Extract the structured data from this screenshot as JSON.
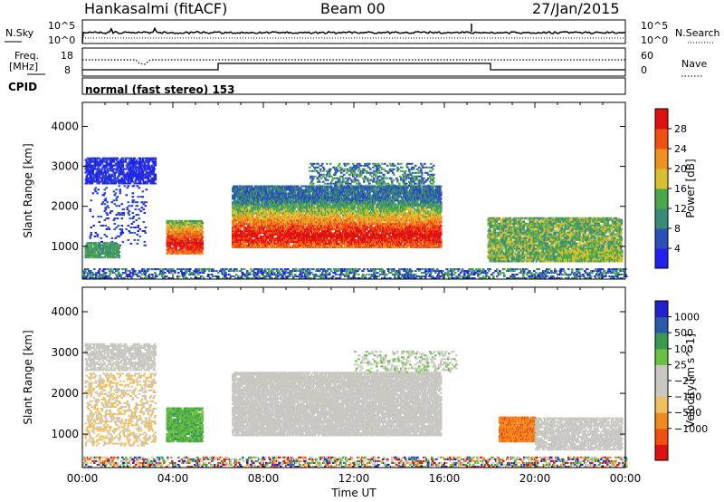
{
  "header": {
    "station": "Hankasalmi (fitACF)",
    "beam": "Beam 00",
    "date": "27/Jan/2015"
  },
  "noise_panel": {
    "left_label": "N.Sky",
    "right_label": "N.Search",
    "left_ticks": [
      "10^5",
      "10^0"
    ],
    "right_ticks": [
      "10^5",
      "10^0"
    ]
  },
  "freq_panel": {
    "left_label_1": "Freq.",
    "left_label_2": "[MHz]",
    "left_ticks": [
      "18",
      "8"
    ],
    "right_label": "Nave",
    "right_ticks": [
      "60",
      "0"
    ]
  },
  "cpid": {
    "label": "CPID",
    "text": "normal (fast stereo) 153"
  },
  "colors": {
    "power_scale": [
      "#2020f0",
      "#2a50b8",
      "#3a8a78",
      "#4aa84a",
      "#d8c030",
      "#f09020",
      "#f05010",
      "#e01010"
    ],
    "velocity_scale": [
      "#e01010",
      "#f05010",
      "#f08a20",
      "#f0c060",
      "#c8c8c0",
      "#c8c8c0",
      "#6ac040",
      "#3a9a50",
      "#2a5aa8",
      "#2020d0"
    ],
    "ground_scatter": "#c8c8c0"
  },
  "chart_data": [
    {
      "type": "heatmap",
      "name": "power",
      "xlabel": "",
      "ylabel": "Slant Range [km]",
      "xlim": [
        0,
        24
      ],
      "ylim": [
        180,
        4600
      ],
      "yticks": [
        "1000",
        "2000",
        "3000",
        "4000"
      ],
      "colorbar_label": "Power [dB]",
      "colorbar_ticks": [
        "4",
        "8",
        "12",
        "16",
        "20",
        "24",
        "28"
      ],
      "colorbar_range": [
        0,
        30
      ],
      "features": [
        {
          "t": [
            3.7,
            5.3
          ],
          "r": [
            800,
            1600
          ],
          "peak_db": 28
        },
        {
          "t": [
            6.6,
            15.8
          ],
          "r": [
            1000,
            2500
          ],
          "peak_db": 28
        },
        {
          "t": [
            0.1,
            3.2
          ],
          "r": [
            2500,
            3200
          ],
          "peak_db": 8
        },
        {
          "t": [
            0.1,
            1.5
          ],
          "r": [
            700,
            1100
          ],
          "peak_db": 12
        },
        {
          "t": [
            17.9,
            23.8
          ],
          "r": [
            600,
            1700
          ],
          "peak_db": 20
        }
      ]
    },
    {
      "type": "heatmap",
      "name": "velocity",
      "xlabel": "Time UT",
      "ylabel": "Slant Range [km]",
      "xlim": [
        0,
        24
      ],
      "ylim": [
        180,
        4600
      ],
      "xticks": [
        "00:00",
        "04:00",
        "08:00",
        "12:00",
        "16:00",
        "20:00",
        "00:00"
      ],
      "yticks": [
        "1000",
        "2000",
        "3000",
        "4000"
      ],
      "colorbar_label": "Velocity [m s^-1]",
      "colorbar_ticks": [
        "1000",
        "500",
        "100",
        "25",
        "−25",
        "−100",
        "−500",
        "−1000"
      ],
      "features": [
        {
          "t": [
            3.7,
            5.3
          ],
          "r": [
            800,
            1600
          ],
          "velocity": 150
        },
        {
          "t": [
            6.6,
            15.8
          ],
          "r": [
            1000,
            2500
          ],
          "velocity": 0
        },
        {
          "t": [
            18.4,
            20.0
          ],
          "r": [
            800,
            1400
          ],
          "velocity": -500
        },
        {
          "t": [
            0.1,
            3.2
          ],
          "r": [
            2500,
            3200
          ],
          "velocity": 0
        }
      ]
    }
  ]
}
